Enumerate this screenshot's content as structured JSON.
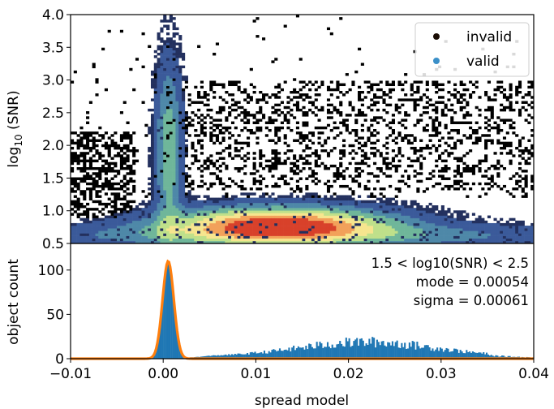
{
  "chart_data": [
    {
      "type": "heatmap",
      "ylabel": "log10 (SNR)",
      "xlim": [
        -0.01,
        0.04
      ],
      "ylim": [
        0.5,
        4.0
      ],
      "yticks": [
        "0.5",
        "1.0",
        "1.5",
        "2.0",
        "2.5",
        "3.0",
        "3.5",
        "4.0"
      ],
      "legend": {
        "placement": "top-right",
        "entries": [
          {
            "label": "invalid",
            "color": "#1a0d05"
          },
          {
            "label": "valid",
            "color": "#3a8fc8"
          }
        ]
      },
      "colormap": [
        "#23305e",
        "#3b5a9a",
        "#4e88a8",
        "#6fb69a",
        "#bfe08a",
        "#f6e58e",
        "#f2a15a",
        "#d8412a"
      ],
      "invalid_color": "#000000",
      "components": [
        {
          "name": "broad-cloud",
          "cx": 0.0125,
          "cy": 0.78,
          "sx": 0.0075,
          "sy": 0.17,
          "peak": 1.0
        },
        {
          "name": "point-source-stripe",
          "cx": 0.0006,
          "cy": 1.9,
          "sx": 0.0009,
          "sy": 0.85,
          "peak": 0.35
        },
        {
          "name": "low-snr-band",
          "cx": 0.015,
          "cy": 0.62,
          "sx": 0.02,
          "sy": 0.12,
          "peak": 0.22
        }
      ],
      "invalid_regions": [
        {
          "x": [
            -0.01,
            -0.003
          ],
          "y": [
            0.9,
            2.2
          ],
          "density": 0.55
        },
        {
          "x": [
            -0.001,
            0.002
          ],
          "y": [
            2.5,
            3.1
          ],
          "density": 0.6
        },
        {
          "x": [
            0.0,
            0.04
          ],
          "y": [
            1.3,
            3.0
          ],
          "density": 0.3
        }
      ]
    },
    {
      "type": "histogram",
      "xlabel": "spread model",
      "ylabel": "object count",
      "xlim": [
        -0.01,
        0.04
      ],
      "ylim": [
        0,
        130
      ],
      "xticks": [
        "−0.01",
        "0.00",
        "0.01",
        "0.02",
        "0.03",
        "0.04"
      ],
      "yticks": [
        "0",
        "50",
        "100"
      ],
      "bar_color": "#1f77b4",
      "fit_color": "#ff7f0e",
      "peak": {
        "center": 0.0005,
        "sigma": 0.00061,
        "height": 110
      },
      "broad": {
        "center": 0.022,
        "sigma": 0.0072,
        "height": 18
      },
      "fit": {
        "mode": 0.00054,
        "sigma": 0.00061,
        "amplitude": 110
      },
      "annotations": [
        "1.5 < log10(SNR) < 2.5",
        "mode = 0.00054",
        "sigma = 0.00061"
      ]
    }
  ]
}
